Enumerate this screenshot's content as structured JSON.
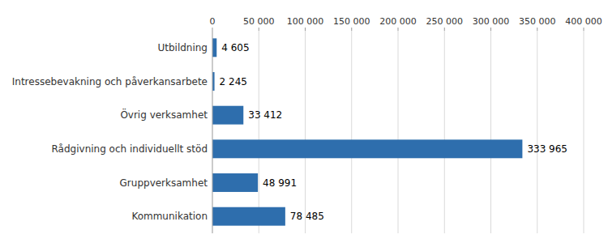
{
  "chart_data": {
    "type": "bar",
    "orientation": "horizontal",
    "categories": [
      "Kommunikation",
      "Gruppverksamhet",
      "Rådgivning och individuellt stöd",
      "Övrig verksamhet",
      "Intressebevakning och påverkansarbete",
      "Utbildning"
    ],
    "values": [
      78485,
      48991,
      333965,
      33412,
      2245,
      4605
    ],
    "value_labels": [
      "78 485",
      "48 991",
      "333 965",
      "33 412",
      "2 245",
      "4 605"
    ],
    "color": "#2E6EAD",
    "xlim": [
      0,
      400000
    ],
    "xticks": [
      0,
      {
        "value": 50000,
        "label": "50 000"
      },
      {
        "value": 100000,
        "label": "100 000"
      },
      {
        "value": 150000,
        "label": "150 000"
      },
      {
        "value": 200000,
        "label": "200 000"
      },
      {
        "value": 250000,
        "label": "250 000"
      },
      {
        "value": 300000,
        "label": "300 000"
      },
      {
        "value": 350000,
        "label": "350 000"
      },
      {
        "value": 400000,
        "label": "400 000"
      }
    ],
    "grid": true,
    "data_labels": true
  }
}
